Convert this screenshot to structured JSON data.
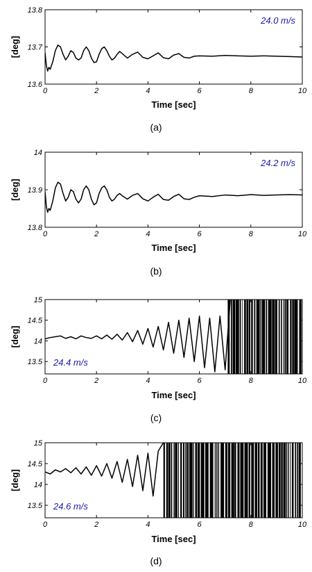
{
  "chart_data": [
    {
      "type": "line",
      "panel_label": "(a)",
      "xlabel": "Time [sec]",
      "ylabel": "[deg]",
      "xlim": [
        0,
        10
      ],
      "ylim": [
        13.6,
        13.8
      ],
      "xticks": [
        0,
        2,
        4,
        6,
        8,
        10
      ],
      "yticks": [
        13.6,
        13.7,
        13.8
      ],
      "ytick_labels": [
        "13.6",
        "13.7",
        "13.8"
      ],
      "annotation": "24.0 m/s",
      "annotation_position": "top-right",
      "grid": false,
      "series": [
        {
          "x": [
            0,
            0.05,
            0.1,
            0.15,
            0.2,
            0.3,
            0.4,
            0.5,
            0.6,
            0.7,
            0.8,
            0.9,
            1.0,
            1.1,
            1.2,
            1.3,
            1.4,
            1.5,
            1.6,
            1.7,
            1.8,
            1.9,
            2.0,
            2.1,
            2.2,
            2.3,
            2.4,
            2.5,
            2.6,
            2.7,
            2.8,
            2.9,
            3.0,
            3.2,
            3.4,
            3.6,
            3.8,
            4.0,
            4.2,
            4.4,
            4.6,
            4.8,
            5.0,
            5.2,
            5.4,
            5.6,
            5.8,
            6.0,
            6.5,
            7.0,
            7.5,
            8.0,
            8.5,
            9.0,
            9.5,
            10.0
          ],
          "y": [
            13.685,
            13.65,
            13.635,
            13.645,
            13.64,
            13.66,
            13.69,
            13.705,
            13.7,
            13.68,
            13.665,
            13.675,
            13.69,
            13.685,
            13.67,
            13.665,
            13.67,
            13.69,
            13.7,
            13.69,
            13.67,
            13.658,
            13.66,
            13.68,
            13.695,
            13.7,
            13.69,
            13.675,
            13.665,
            13.67,
            13.68,
            13.688,
            13.682,
            13.67,
            13.68,
            13.686,
            13.672,
            13.668,
            13.676,
            13.684,
            13.671,
            13.668,
            13.678,
            13.682,
            13.672,
            13.67,
            13.675,
            13.676,
            13.675,
            13.677,
            13.676,
            13.675,
            13.676,
            13.675,
            13.674,
            13.673
          ]
        }
      ]
    },
    {
      "type": "line",
      "panel_label": "(b)",
      "xlabel": "Time [sec]",
      "ylabel": "[deg]",
      "xlim": [
        0,
        10
      ],
      "ylim": [
        13.8,
        14.0
      ],
      "xticks": [
        0,
        2,
        4,
        6,
        8,
        10
      ],
      "yticks": [
        13.8,
        13.9,
        14.0
      ],
      "ytick_labels": [
        "13.8",
        "13.9",
        "14"
      ],
      "annotation": "24.2 m/s",
      "annotation_position": "top-right",
      "grid": false,
      "series": [
        {
          "x": [
            0,
            0.05,
            0.1,
            0.15,
            0.2,
            0.3,
            0.4,
            0.5,
            0.6,
            0.7,
            0.8,
            0.9,
            1.0,
            1.1,
            1.2,
            1.3,
            1.4,
            1.5,
            1.6,
            1.7,
            1.8,
            1.9,
            2.0,
            2.1,
            2.2,
            2.3,
            2.4,
            2.5,
            2.6,
            2.7,
            2.8,
            2.9,
            3.0,
            3.2,
            3.4,
            3.6,
            3.8,
            4.0,
            4.2,
            4.4,
            4.6,
            4.8,
            5.0,
            5.2,
            5.4,
            5.6,
            5.8,
            6.0,
            6.5,
            7.0,
            7.5,
            8.0,
            8.5,
            9.0,
            9.5,
            10.0
          ],
          "y": [
            13.895,
            13.855,
            13.84,
            13.85,
            13.845,
            13.87,
            13.905,
            13.92,
            13.915,
            13.89,
            13.87,
            13.88,
            13.9,
            13.895,
            13.875,
            13.865,
            13.875,
            13.9,
            13.91,
            13.9,
            13.875,
            13.86,
            13.865,
            13.89,
            13.905,
            13.91,
            13.9,
            13.88,
            13.87,
            13.875,
            13.885,
            13.89,
            13.884,
            13.875,
            13.885,
            13.89,
            13.876,
            13.87,
            13.88,
            13.888,
            13.874,
            13.872,
            13.882,
            13.888,
            13.876,
            13.874,
            13.88,
            13.884,
            13.882,
            13.886,
            13.884,
            13.887,
            13.885,
            13.886,
            13.887,
            13.886
          ]
        }
      ]
    },
    {
      "type": "line",
      "panel_label": "(c)",
      "xlabel": "Time [sec]",
      "ylabel": "[deg]",
      "xlim": [
        0,
        10
      ],
      "ylim": [
        13.2,
        15.0
      ],
      "xticks": [
        0,
        2,
        4,
        6,
        8,
        10
      ],
      "yticks": [
        13.5,
        14.0,
        14.5,
        15.0
      ],
      "ytick_labels": [
        "13.5",
        "14",
        "14.5",
        "15"
      ],
      "annotation": "24.4 m/s",
      "annotation_position": "bottom-left",
      "grid": false,
      "series": [
        {
          "x": [
            0,
            0.2,
            0.4,
            0.6,
            0.8,
            1.0,
            1.2,
            1.4,
            1.6,
            1.8,
            2.0,
            2.2,
            2.4,
            2.6,
            2.8,
            3.0,
            3.2,
            3.4,
            3.6,
            3.8,
            4.0,
            4.2,
            4.4,
            4.6,
            4.8,
            5.0,
            5.2,
            5.4,
            5.6,
            5.8,
            6.0,
            6.2,
            6.4,
            6.6,
            6.8,
            7.0,
            7.2
          ],
          "y": [
            14.05,
            14.08,
            14.1,
            14.12,
            14.06,
            14.1,
            14.05,
            14.12,
            14.08,
            14.06,
            14.12,
            14.05,
            14.14,
            14.04,
            14.16,
            14.02,
            14.2,
            13.98,
            14.25,
            13.92,
            14.3,
            13.85,
            14.35,
            13.78,
            14.45,
            13.7,
            14.5,
            13.6,
            14.55,
            13.5,
            14.6,
            13.35,
            14.55,
            13.25,
            14.6,
            13.3,
            15.0
          ]
        }
      ],
      "instability_onset_x": 7.1
    },
    {
      "type": "line",
      "panel_label": "(d)",
      "xlabel": "Time [sec]",
      "ylabel": "[deg]",
      "xlim": [
        0,
        10
      ],
      "ylim": [
        13.2,
        15.0
      ],
      "xticks": [
        0,
        2,
        4,
        6,
        8,
        10
      ],
      "yticks": [
        13.5,
        14.0,
        14.5,
        15.0
      ],
      "ytick_labels": [
        "13.5",
        "14",
        "14.5",
        "15"
      ],
      "annotation": "24.6 m/s",
      "annotation_position": "bottom-left",
      "grid": false,
      "series": [
        {
          "x": [
            0,
            0.2,
            0.4,
            0.6,
            0.8,
            1.0,
            1.2,
            1.4,
            1.6,
            1.8,
            2.0,
            2.2,
            2.4,
            2.6,
            2.8,
            3.0,
            3.2,
            3.4,
            3.6,
            3.8,
            4.0,
            4.2,
            4.4,
            4.6
          ],
          "y": [
            14.3,
            14.25,
            14.35,
            14.3,
            14.38,
            14.28,
            14.4,
            14.25,
            14.42,
            14.22,
            14.45,
            14.2,
            14.5,
            14.15,
            14.55,
            14.05,
            14.6,
            13.95,
            14.7,
            13.85,
            14.75,
            13.72,
            14.8,
            15.0
          ]
        }
      ],
      "instability_onset_x": 4.6
    }
  ]
}
